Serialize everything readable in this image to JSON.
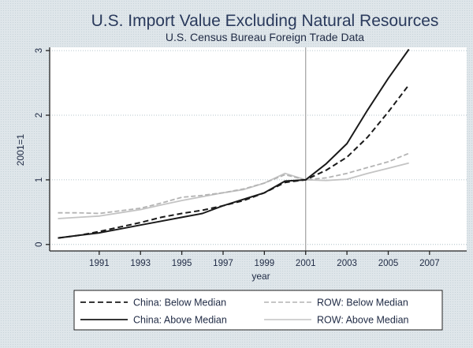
{
  "chart_data": {
    "type": "line",
    "title": "U.S. Import Value Excluding Natural Resources",
    "subtitle": "U.S. Census Bureau Foreign Trade Data",
    "xlabel": "year",
    "ylabel": "2001=1",
    "xlim": [
      1988.6,
      2008.8
    ],
    "ylim": [
      -0.1,
      3.05
    ],
    "xticks": [
      1991,
      1993,
      1995,
      1997,
      1999,
      2001,
      2003,
      2005,
      2007
    ],
    "xtick_labels": [
      "1991",
      "1993",
      "1995",
      "1997",
      "1999",
      "2001",
      "2003",
      "2005",
      "2007"
    ],
    "yticks": [
      0,
      1,
      2,
      3
    ],
    "ytick_labels": [
      "0",
      "1",
      "2",
      "3"
    ],
    "grid": "horizontal dotted at y ticks",
    "reference_line": {
      "x": 2001
    },
    "x": [
      1989,
      1990,
      1991,
      1992,
      1993,
      1994,
      1995,
      1996,
      1997,
      1998,
      1999,
      2000,
      2001,
      2002,
      2003,
      2004,
      2005,
      2006
    ],
    "series": [
      {
        "name": "China: Below Median",
        "style": "dashed",
        "color": "#1a1a1a",
        "values": [
          0.1,
          0.14,
          0.2,
          0.27,
          0.34,
          0.42,
          0.48,
          0.53,
          0.6,
          0.68,
          0.8,
          0.96,
          1.0,
          1.15,
          1.35,
          1.66,
          2.05,
          2.47
        ]
      },
      {
        "name": "China: Above Median",
        "style": "solid",
        "color": "#1a1a1a",
        "values": [
          0.1,
          0.14,
          0.18,
          0.24,
          0.3,
          0.36,
          0.42,
          0.48,
          0.6,
          0.7,
          0.8,
          0.98,
          1.0,
          1.25,
          1.56,
          2.08,
          2.57,
          3.02
        ]
      },
      {
        "name": "ROW: Below Median",
        "style": "dashed",
        "color": "#b4b4b4",
        "values": [
          0.49,
          0.49,
          0.48,
          0.52,
          0.56,
          0.64,
          0.73,
          0.76,
          0.8,
          0.86,
          0.95,
          1.08,
          1.0,
          1.03,
          1.1,
          1.19,
          1.28,
          1.41
        ]
      },
      {
        "name": "ROW: Above Median",
        "style": "solid",
        "color": "#c4c4c4",
        "values": [
          0.4,
          0.42,
          0.44,
          0.49,
          0.54,
          0.61,
          0.68,
          0.74,
          0.8,
          0.85,
          0.95,
          1.1,
          1.0,
          0.99,
          1.01,
          1.1,
          1.18,
          1.26
        ]
      }
    ],
    "legend": {
      "placement": "bottom",
      "columns": 2,
      "order": [
        "China: Below Median",
        "ROW: Below Median",
        "China: Above Median",
        "ROW: Above Median"
      ]
    }
  }
}
